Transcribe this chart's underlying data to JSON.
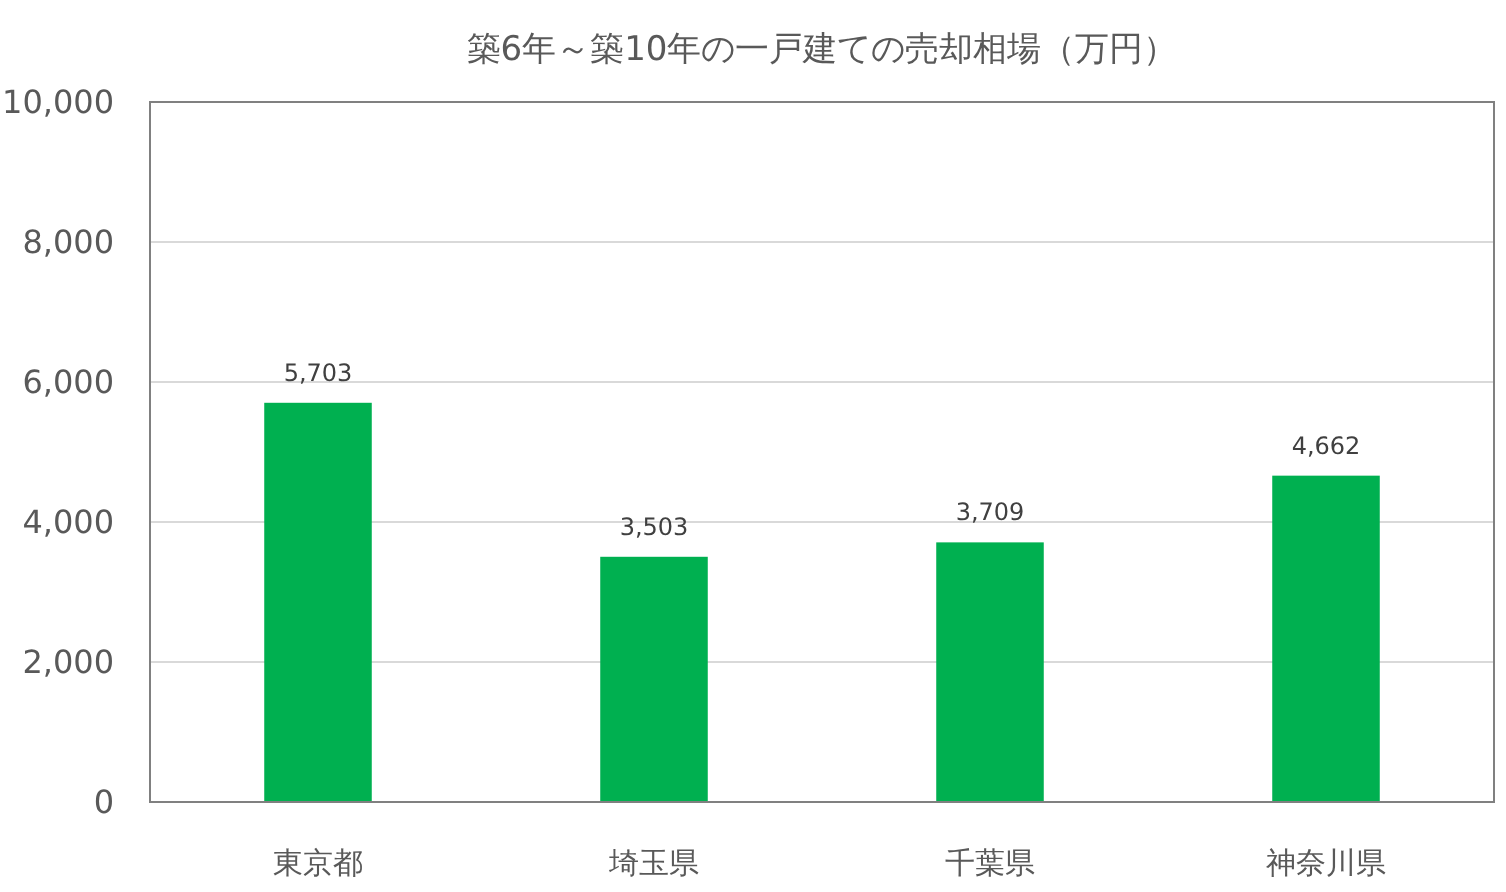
{
  "chart_data": {
    "type": "bar",
    "title": "築6年～築10年の一戸建ての売却相場（万円）",
    "categories": [
      "東京都",
      "埼玉県",
      "千葉県",
      "神奈川県"
    ],
    "values": [
      5703,
      3503,
      3709,
      4662
    ],
    "value_labels": [
      "5,703",
      "3,503",
      "3,709",
      "4,662"
    ],
    "color": "#00b050",
    "ylim": [
      0,
      10000
    ],
    "yticks": [
      0,
      {
        "value": 2000,
        "label": "2,000"
      },
      {
        "value": 4000,
        "label": "4,000"
      },
      {
        "value": 6000,
        "label": "6,000"
      },
      {
        "value": 8000,
        "label": "8,000"
      },
      {
        "value": 10000,
        "label": "10,000"
      }
    ],
    "grid": "y"
  }
}
